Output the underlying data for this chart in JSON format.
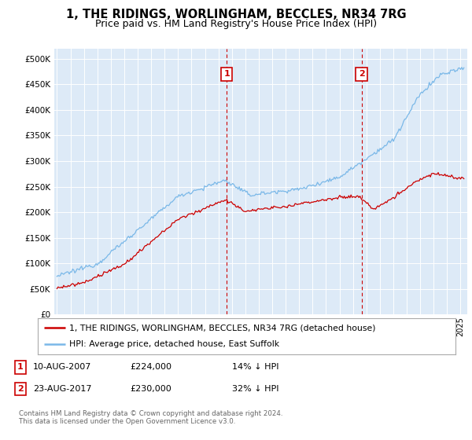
{
  "title": "1, THE RIDINGS, WORLINGHAM, BECCLES, NR34 7RG",
  "subtitle": "Price paid vs. HM Land Registry's House Price Index (HPI)",
  "ylabel_ticks": [
    "£0",
    "£50K",
    "£100K",
    "£150K",
    "£200K",
    "£250K",
    "£300K",
    "£350K",
    "£400K",
    "£450K",
    "£500K"
  ],
  "ytick_vals": [
    0,
    50000,
    100000,
    150000,
    200000,
    250000,
    300000,
    350000,
    400000,
    450000,
    500000
  ],
  "ylim": [
    0,
    520000
  ],
  "xlim_start": 1994.8,
  "xlim_end": 2025.5,
  "hpi_color": "#7ab8e8",
  "price_color": "#cc0000",
  "background_color": "#ddeaf7",
  "legend_label_price": "1, THE RIDINGS, WORLINGHAM, BECCLES, NR34 7RG (detached house)",
  "legend_label_hpi": "HPI: Average price, detached house, East Suffolk",
  "sale1_date": 2007.61,
  "sale1_price": 224000,
  "sale1_label": "1",
  "sale2_date": 2017.64,
  "sale2_price": 230000,
  "sale2_label": "2",
  "footnote": "Contains HM Land Registry data © Crown copyright and database right 2024.\nThis data is licensed under the Open Government Licence v3.0.",
  "title_fontsize": 10.5,
  "subtitle_fontsize": 9
}
